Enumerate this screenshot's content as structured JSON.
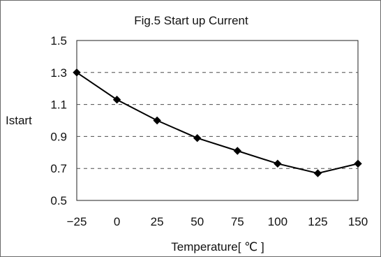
{
  "chart_data": {
    "type": "line",
    "title": "Fig.5 Start up Current",
    "xlabel": "Temperature[ ℃ ]",
    "ylabel": "Istart",
    "x": [
      -25,
      0,
      25,
      50,
      75,
      100,
      125,
      150
    ],
    "x_tick_labels": [
      "−25",
      "0",
      "25",
      "50",
      "75",
      "100",
      "125",
      "150"
    ],
    "y_tick_labels": [
      "1.5",
      "1.3",
      "1.1",
      "0.9",
      "0.7",
      "0.5"
    ],
    "y_ticks": [
      1.5,
      1.3,
      1.1,
      0.9,
      0.7,
      0.5
    ],
    "xlim": [
      -25,
      150
    ],
    "ylim": [
      0.5,
      1.5
    ],
    "grid": "horizontal-dashed",
    "legend": "none",
    "series": [
      {
        "values": [
          1.3,
          1.13,
          1.0,
          0.89,
          0.81,
          0.73,
          0.67,
          0.73
        ],
        "color": "#000000",
        "marker": "diamond"
      }
    ]
  }
}
